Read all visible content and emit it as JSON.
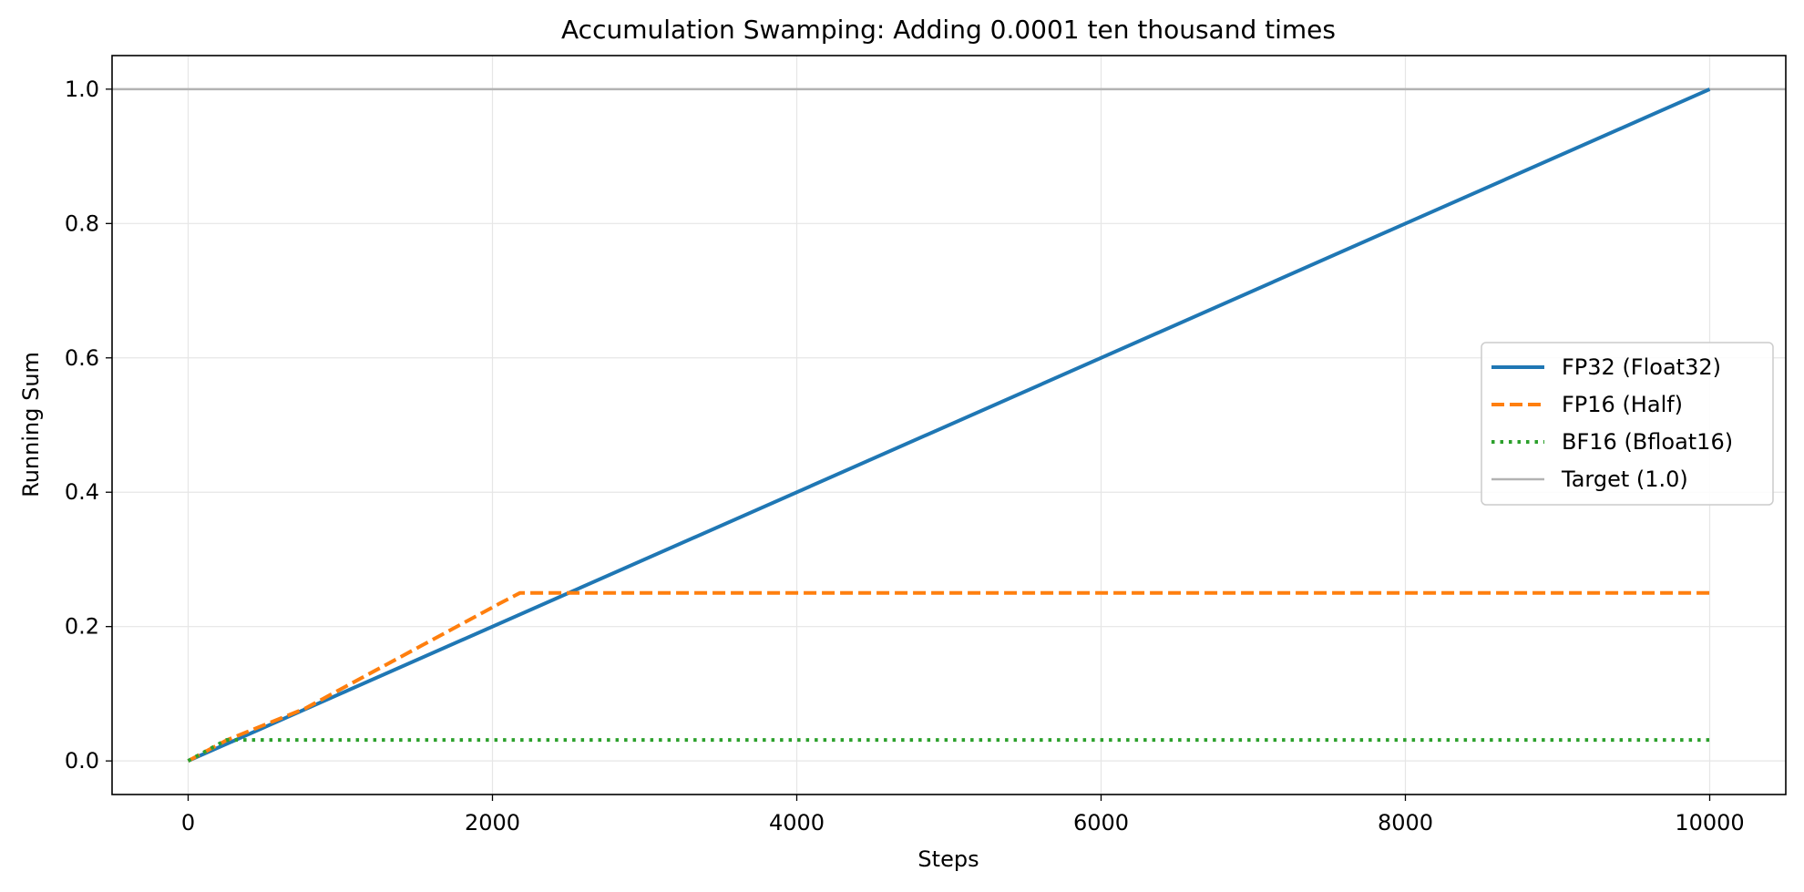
{
  "chart_data": {
    "type": "line",
    "title": "Accumulation Swamping: Adding 0.0001 ten thousand times",
    "xlabel": "Steps",
    "ylabel": "Running Sum",
    "xlim": [
      -500,
      10500
    ],
    "ylim": [
      -0.05,
      1.05
    ],
    "xticks": [
      0,
      2000,
      4000,
      6000,
      8000,
      10000
    ],
    "yticks": [
      0.0,
      0.2,
      0.4,
      0.6,
      0.8,
      1.0
    ],
    "xtick_labels": [
      "0",
      "2000",
      "4000",
      "6000",
      "8000",
      "10000"
    ],
    "ytick_labels": [
      "0.0",
      "0.2",
      "0.4",
      "0.6",
      "0.8",
      "1.0"
    ],
    "grid": true,
    "legend_position": "right",
    "series": [
      {
        "name": "FP32 (Float32)",
        "color": "#1f77b4",
        "style": "solid",
        "x": [
          0,
          10000
        ],
        "y": [
          0.0,
          1.0
        ]
      },
      {
        "name": "FP16 (Half)",
        "color": "#ff7f0e",
        "style": "dashed",
        "x": [
          0,
          256,
          512,
          768,
          1024,
          1536,
          2048,
          2180,
          10000
        ],
        "y": [
          0.0,
          0.0312,
          0.0547,
          0.0781,
          0.1094,
          0.1719,
          0.2344,
          0.25,
          0.25
        ]
      },
      {
        "name": "BF16 (Bfloat16)",
        "color": "#2ca02c",
        "style": "dotted",
        "x": [
          0,
          250,
          10000
        ],
        "y": [
          0.0,
          0.0312,
          0.0312
        ]
      },
      {
        "name": "Target (1.0)",
        "color": "#b3b3b3",
        "style": "hline",
        "y": 1.0
      }
    ]
  }
}
